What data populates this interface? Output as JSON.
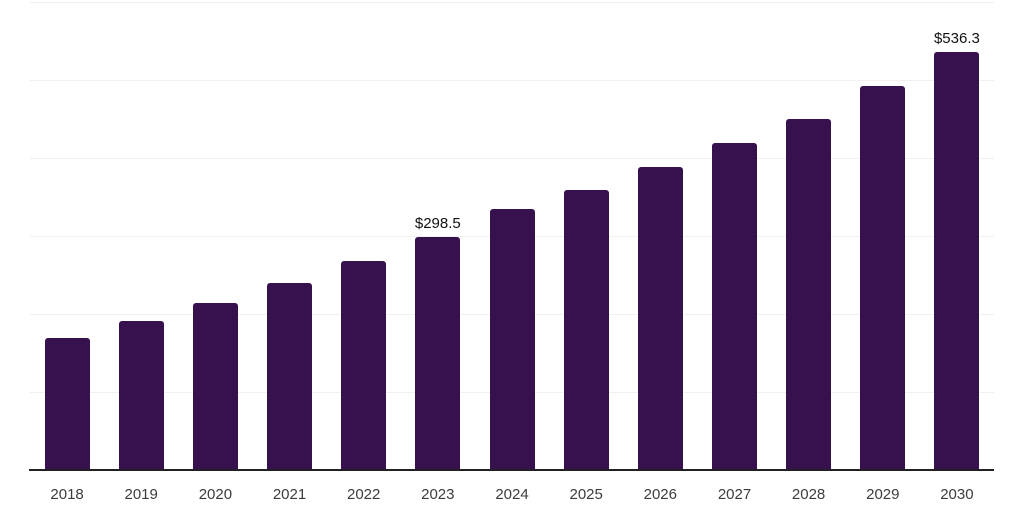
{
  "chart_data": {
    "type": "bar",
    "title": "",
    "xlabel": "",
    "ylabel": "",
    "categories": [
      "2018",
      "2019",
      "2020",
      "2021",
      "2022",
      "2023",
      "2024",
      "2025",
      "2026",
      "2027",
      "2028",
      "2029",
      "2030"
    ],
    "values": [
      169.7,
      191.4,
      214.4,
      240.1,
      267.5,
      298.5,
      334.4,
      358.9,
      388.0,
      419.6,
      449.6,
      492.7,
      536.3
    ],
    "annotations": [
      {
        "category": "2023",
        "text": "$298.5"
      },
      {
        "category": "2030",
        "text": "$536.3"
      }
    ],
    "ylim": [
      0,
      600
    ],
    "gridline_step": 100,
    "grid": true,
    "legend": false,
    "colors": {
      "bar": "#36114D",
      "gridline": "#f0f0f0",
      "axis_line": "#212121",
      "tick_label": "#3c3c3c",
      "data_label": "#111111",
      "background": "#ffffff"
    }
  }
}
